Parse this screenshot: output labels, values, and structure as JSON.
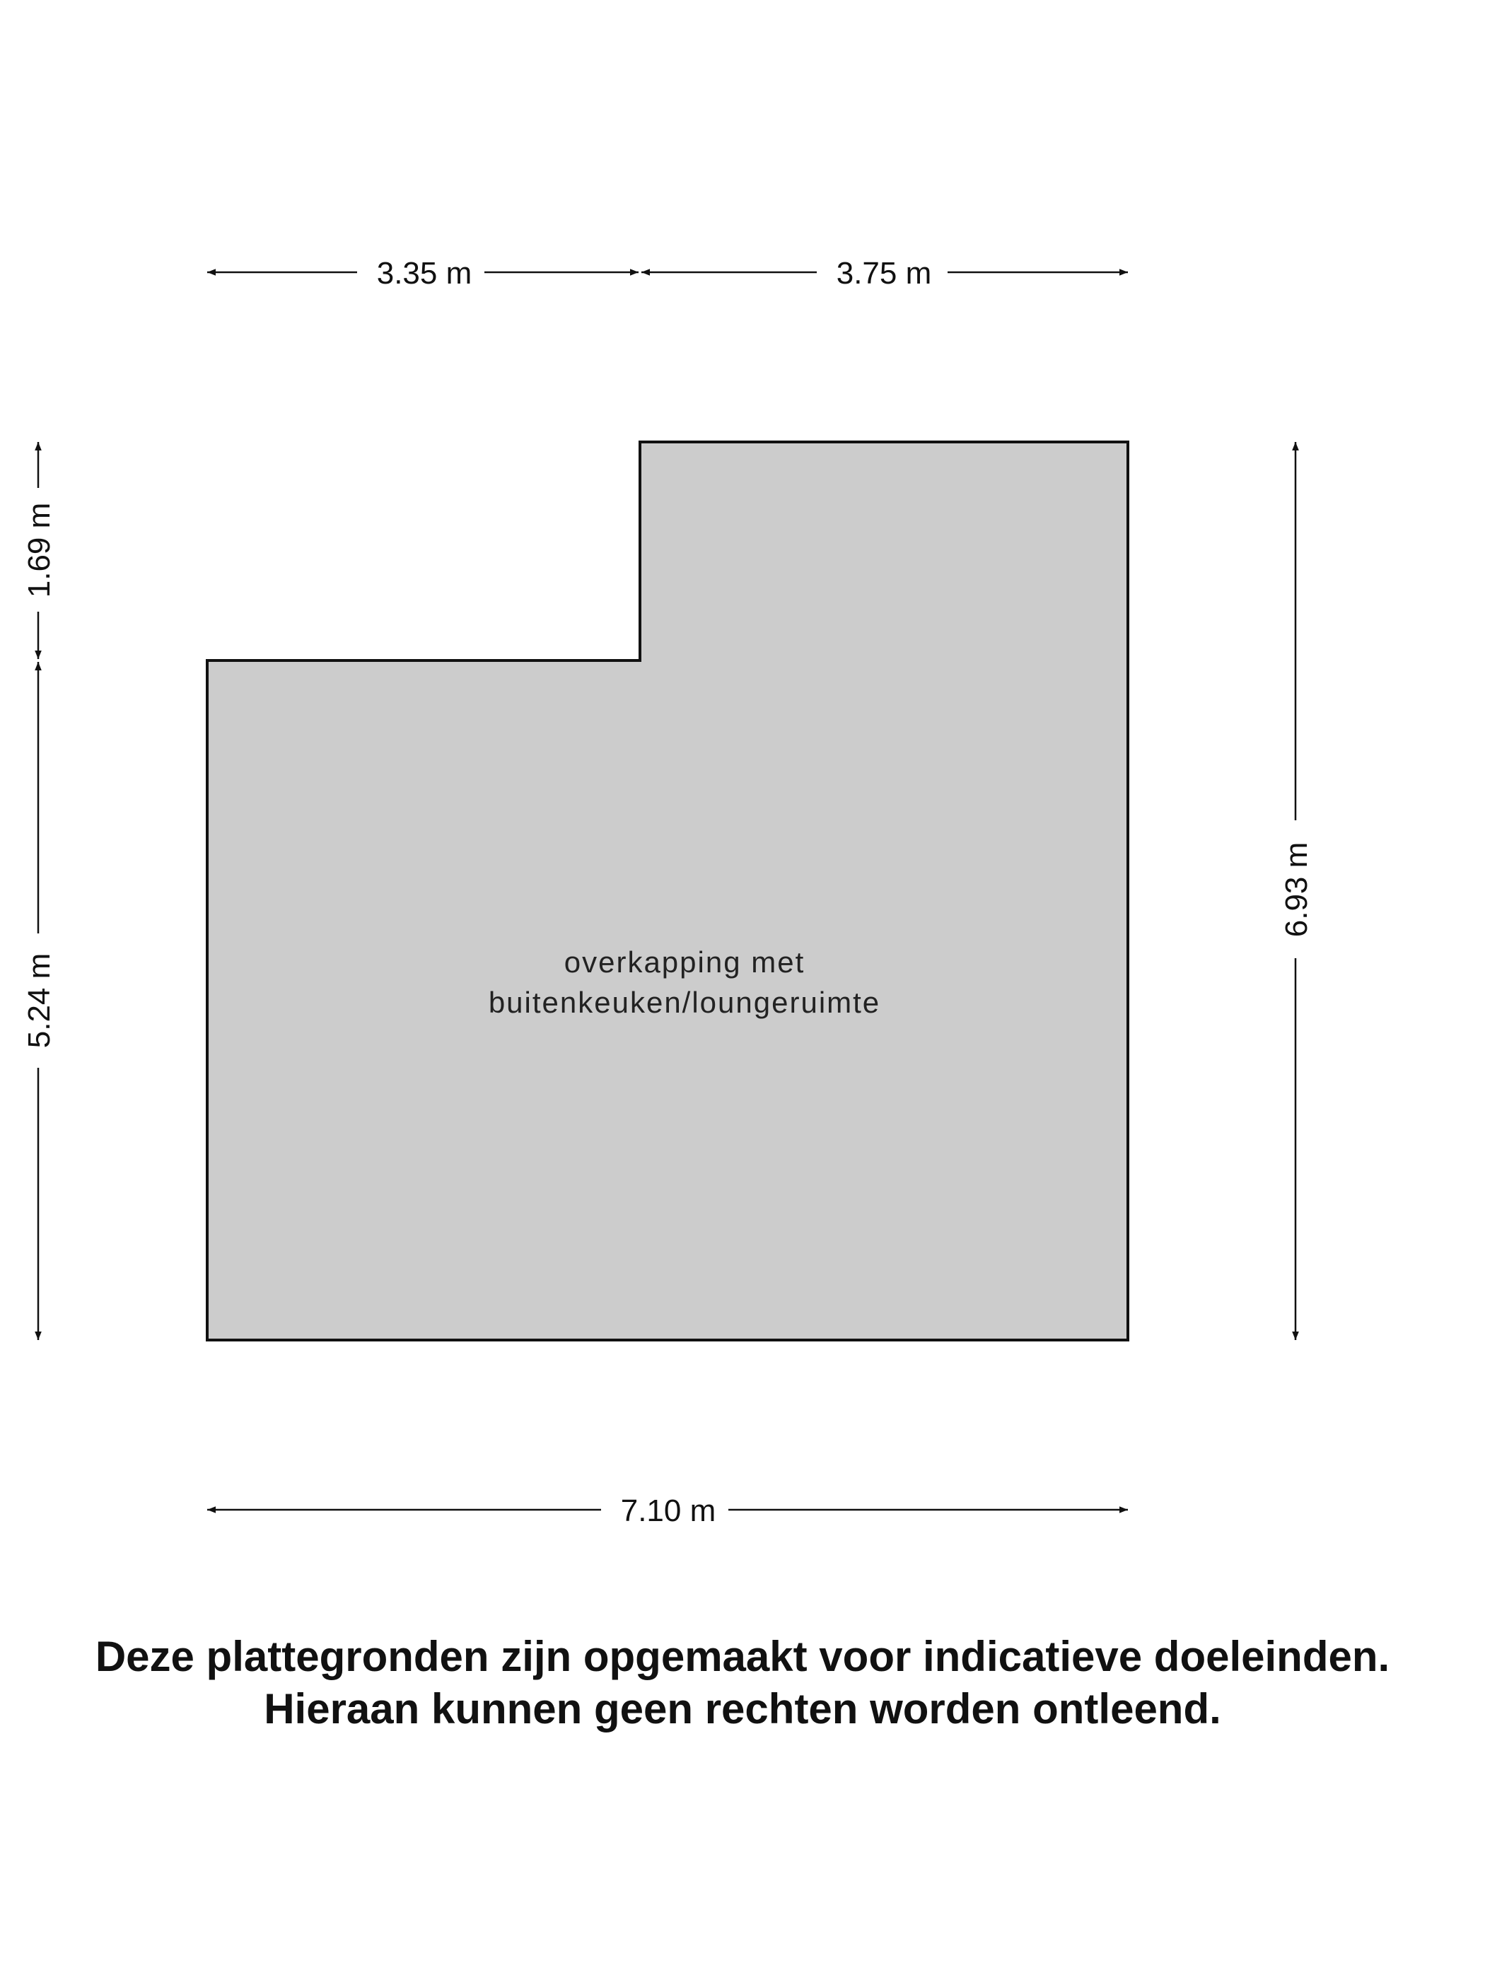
{
  "floorplan": {
    "fill_color": "#cccccc",
    "outline_color": "#111111",
    "room_label_line1": "overkapping met",
    "room_label_line2": "buitenkeuken/loungeruimte",
    "dimensions": {
      "top_left": "3.35 m",
      "top_right": "3.75 m",
      "left_upper": "1.69 m",
      "left_lower": "5.24 m",
      "right": "6.93 m",
      "bottom": "7.10 m"
    }
  },
  "disclaimer": {
    "line1": "Deze plattegronden zijn opgemaakt voor indicatieve doeleinden.",
    "line2": "Hieraan kunnen geen rechten worden ontleend."
  }
}
